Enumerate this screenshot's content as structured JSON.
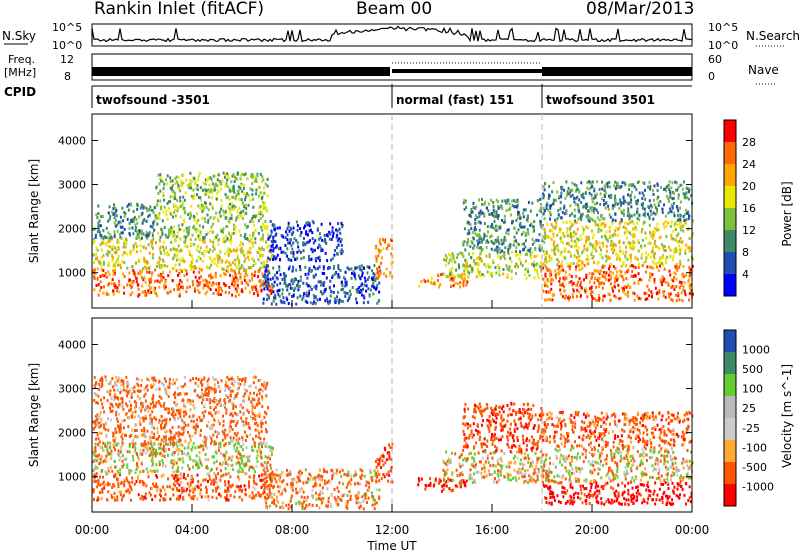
{
  "header": {
    "site": "Rankin Inlet (fitACF)",
    "beam": "Beam 00",
    "date": "08/Mar/2013"
  },
  "summary": {
    "nsky_label": "N.Sky",
    "nsearch_label": "N.Search",
    "noise_ticks": [
      "10^5",
      "10^0"
    ],
    "freq_label_top": "Freq.",
    "freq_label_bottom": "[MHz]",
    "freq_ticks": [
      "12",
      "8"
    ],
    "nave_label": "Nave",
    "nave_ticks": [
      "60",
      "0"
    ],
    "cpid_label": "CPID",
    "cpid_segments": [
      {
        "start_hour": 0,
        "end_hour": 12,
        "label": "twofsound -3501"
      },
      {
        "start_hour": 12,
        "end_hour": 18,
        "label": "normal (fast) 151"
      },
      {
        "start_hour": 18,
        "end_hour": 24,
        "label": "twofsound 3501"
      }
    ]
  },
  "colors": {
    "power_scale": [
      "#0000ff",
      "#1f4fb4",
      "#3e8a66",
      "#7fbf3f",
      "#e8e800",
      "#ffa500",
      "#ff6a00",
      "#ff0000"
    ],
    "velocity_scale": [
      "#ff0000",
      "#ff5500",
      "#ffaa33",
      "#cccccc",
      "#bbbbbb",
      "#66cc33",
      "#3e8a66",
      "#1f4fb4"
    ]
  },
  "chart_data": [
    {
      "type": "heatmap",
      "quantity": "power",
      "ylabel": "Slant Range [km]",
      "yticks": [
        1000,
        2000,
        3000,
        4000
      ],
      "ylim": [
        200,
        4600
      ],
      "xlim_hours": [
        0,
        24
      ],
      "colorbar_label": "Power [dB]",
      "colorbar_ticks": [
        28,
        24,
        20,
        16,
        12,
        8,
        4
      ],
      "colorbar_range": [
        0,
        32
      ],
      "scatter_regions": [
        {
          "t0": 0.0,
          "t1": 7.2,
          "r0": 500,
          "r1": 1100,
          "val": 26
        },
        {
          "t0": 0.0,
          "t1": 7.2,
          "r0": 1100,
          "r1": 1800,
          "val": 18
        },
        {
          "t0": 0.0,
          "t1": 2.5,
          "r0": 1800,
          "r1": 2600,
          "val": 10
        },
        {
          "t0": 2.5,
          "t1": 7.0,
          "r0": 1800,
          "r1": 3300,
          "val": 14
        },
        {
          "t0": 6.8,
          "t1": 11.5,
          "r0": 300,
          "r1": 1200,
          "val": 6
        },
        {
          "t0": 7.0,
          "t1": 10.0,
          "r0": 1300,
          "r1": 2200,
          "val": 5
        },
        {
          "t0": 11.3,
          "t1": 12.0,
          "r0": 900,
          "r1": 1800,
          "val": 24
        },
        {
          "t0": 13.0,
          "t1": 15.0,
          "r0": 700,
          "r1": 1000,
          "val": 24
        },
        {
          "t0": 14.0,
          "t1": 18.0,
          "r0": 900,
          "r1": 1500,
          "val": 16
        },
        {
          "t0": 14.8,
          "t1": 18.0,
          "r0": 1500,
          "r1": 2700,
          "val": 10
        },
        {
          "t0": 18.0,
          "t1": 24.0,
          "r0": 400,
          "r1": 1200,
          "val": 26
        },
        {
          "t0": 18.0,
          "t1": 24.0,
          "r0": 1200,
          "r1": 2200,
          "val": 18
        },
        {
          "t0": 18.0,
          "t1": 24.0,
          "r0": 2200,
          "r1": 3100,
          "val": 10
        }
      ]
    },
    {
      "type": "heatmap",
      "quantity": "velocity",
      "ylabel": "Slant Range [km]",
      "yticks": [
        1000,
        2000,
        3000,
        4000
      ],
      "ylim": [
        200,
        4600
      ],
      "xlim_hours": [
        0,
        24
      ],
      "xticks": [
        "00:00",
        "04:00",
        "08:00",
        "12:00",
        "16:00",
        "20:00",
        "00:00"
      ],
      "xlabel": "Time UT",
      "colorbar_label": "Velocity [m s^-1]",
      "colorbar_ticks": [
        1000,
        500,
        100,
        25,
        -25,
        -100,
        -500,
        -1000
      ],
      "scatter_regions": [
        {
          "t0": 0.0,
          "t1": 7.2,
          "r0": 500,
          "r1": 1100,
          "val": -300
        },
        {
          "t0": 0.0,
          "t1": 7.2,
          "r0": 1100,
          "r1": 1800,
          "val": 50
        },
        {
          "t0": 0.0,
          "t1": 3.0,
          "r0": 1500,
          "r1": 1800,
          "val": 0
        },
        {
          "t0": 0.0,
          "t1": 7.0,
          "r0": 1800,
          "r1": 3300,
          "val": -200
        },
        {
          "t0": 6.8,
          "t1": 11.5,
          "r0": 300,
          "r1": 1200,
          "val": -150
        },
        {
          "t0": 11.3,
          "t1": 12.0,
          "r0": 900,
          "r1": 1800,
          "val": -400
        },
        {
          "t0": 13.0,
          "t1": 15.0,
          "r0": 700,
          "r1": 1000,
          "val": -600
        },
        {
          "t0": 14.0,
          "t1": 18.0,
          "r0": 900,
          "r1": 1600,
          "val": 0
        },
        {
          "t0": 14.8,
          "t1": 18.0,
          "r0": 1600,
          "r1": 2700,
          "val": -400
        },
        {
          "t0": 18.0,
          "t1": 24.0,
          "r0": 400,
          "r1": 900,
          "val": -700
        },
        {
          "t0": 18.0,
          "t1": 24.0,
          "r0": 900,
          "r1": 1700,
          "val": 0
        },
        {
          "t0": 18.0,
          "t1": 24.0,
          "r0": 1700,
          "r1": 2500,
          "val": -300
        }
      ]
    }
  ]
}
